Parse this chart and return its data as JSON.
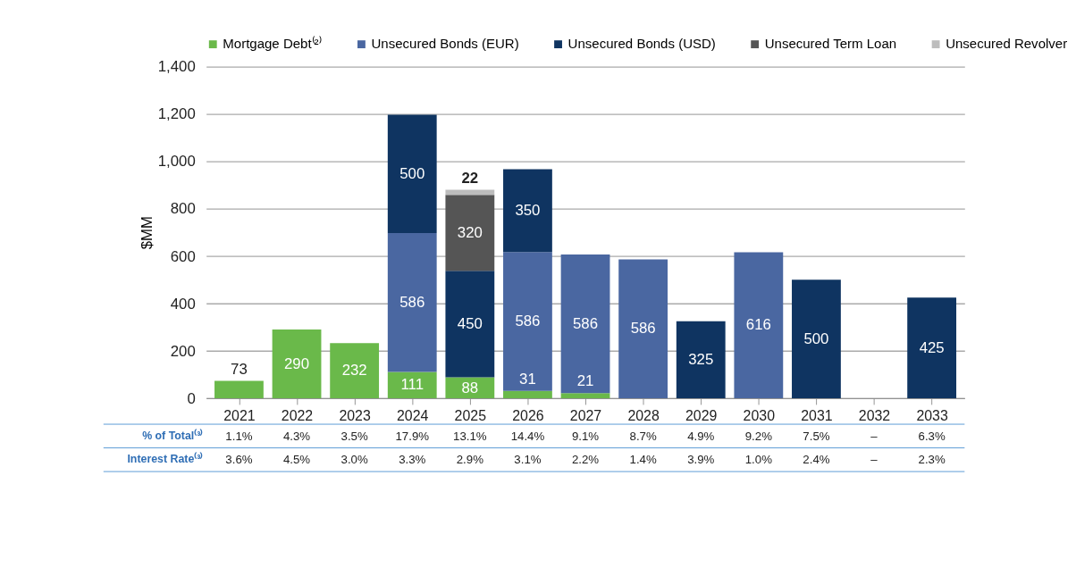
{
  "chart_data": {
    "type": "bar",
    "stacked": true,
    "ylabel": "$MM",
    "categories": [
      "2021",
      "2022",
      "2023",
      "2024",
      "2025",
      "2026",
      "2027",
      "2028",
      "2029",
      "2030",
      "2031",
      "2032",
      "2033"
    ],
    "series": [
      {
        "name": "Mortgage Debt⁽²⁾",
        "color": "#6ab94a",
        "values": [
          73,
          290,
          232,
          111,
          88,
          31,
          21,
          null,
          null,
          null,
          null,
          null,
          null
        ]
      },
      {
        "name": "Unsecured Bonds (EUR)",
        "color": "#4a67a1",
        "values": [
          null,
          null,
          null,
          586,
          null,
          586,
          586,
          586,
          null,
          616,
          null,
          null,
          null
        ]
      },
      {
        "name": "Unsecured Bonds (USD)",
        "color": "#0f3461",
        "values": [
          null,
          null,
          null,
          500,
          450,
          350,
          null,
          null,
          325,
          null,
          500,
          null,
          425
        ]
      },
      {
        "name": "Unsecured Term Loan",
        "color": "#555555",
        "values": [
          null,
          null,
          null,
          null,
          320,
          null,
          null,
          null,
          null,
          null,
          null,
          null,
          null
        ]
      },
      {
        "name": "Unsecured Revolver",
        "color": "#bdbdbd",
        "values": [
          null,
          null,
          null,
          null,
          22,
          null,
          null,
          null,
          null,
          null,
          null,
          null,
          null
        ]
      }
    ],
    "ylim": [
      0,
      1400
    ],
    "yticks": [
      0,
      200,
      400,
      600,
      800,
      {
        "value": 1000,
        "label": "1,000"
      },
      {
        "value": 1200,
        "label": "1,200"
      },
      {
        "value": 1400,
        "label": "1,400"
      }
    ],
    "grid": "y",
    "legend": "top",
    "data_labels": true,
    "annotations": [
      "% of Total⁽³⁾",
      "1.1%",
      "4.3%",
      "3.5%",
      "17.9%",
      "13.1%",
      "14.4%",
      "9.1%",
      "8.7%",
      "4.9%",
      "9.2%",
      "7.5%",
      "–",
      "6.3%",
      "Interest Rate⁽³⁾",
      "3.6%",
      "4.5%",
      "3.0%",
      "3.3%",
      "2.9%",
      "3.1%",
      "2.2%",
      "1.4%",
      "3.9%",
      "1.0%",
      "2.4%",
      "–",
      "2.3%"
    ]
  }
}
